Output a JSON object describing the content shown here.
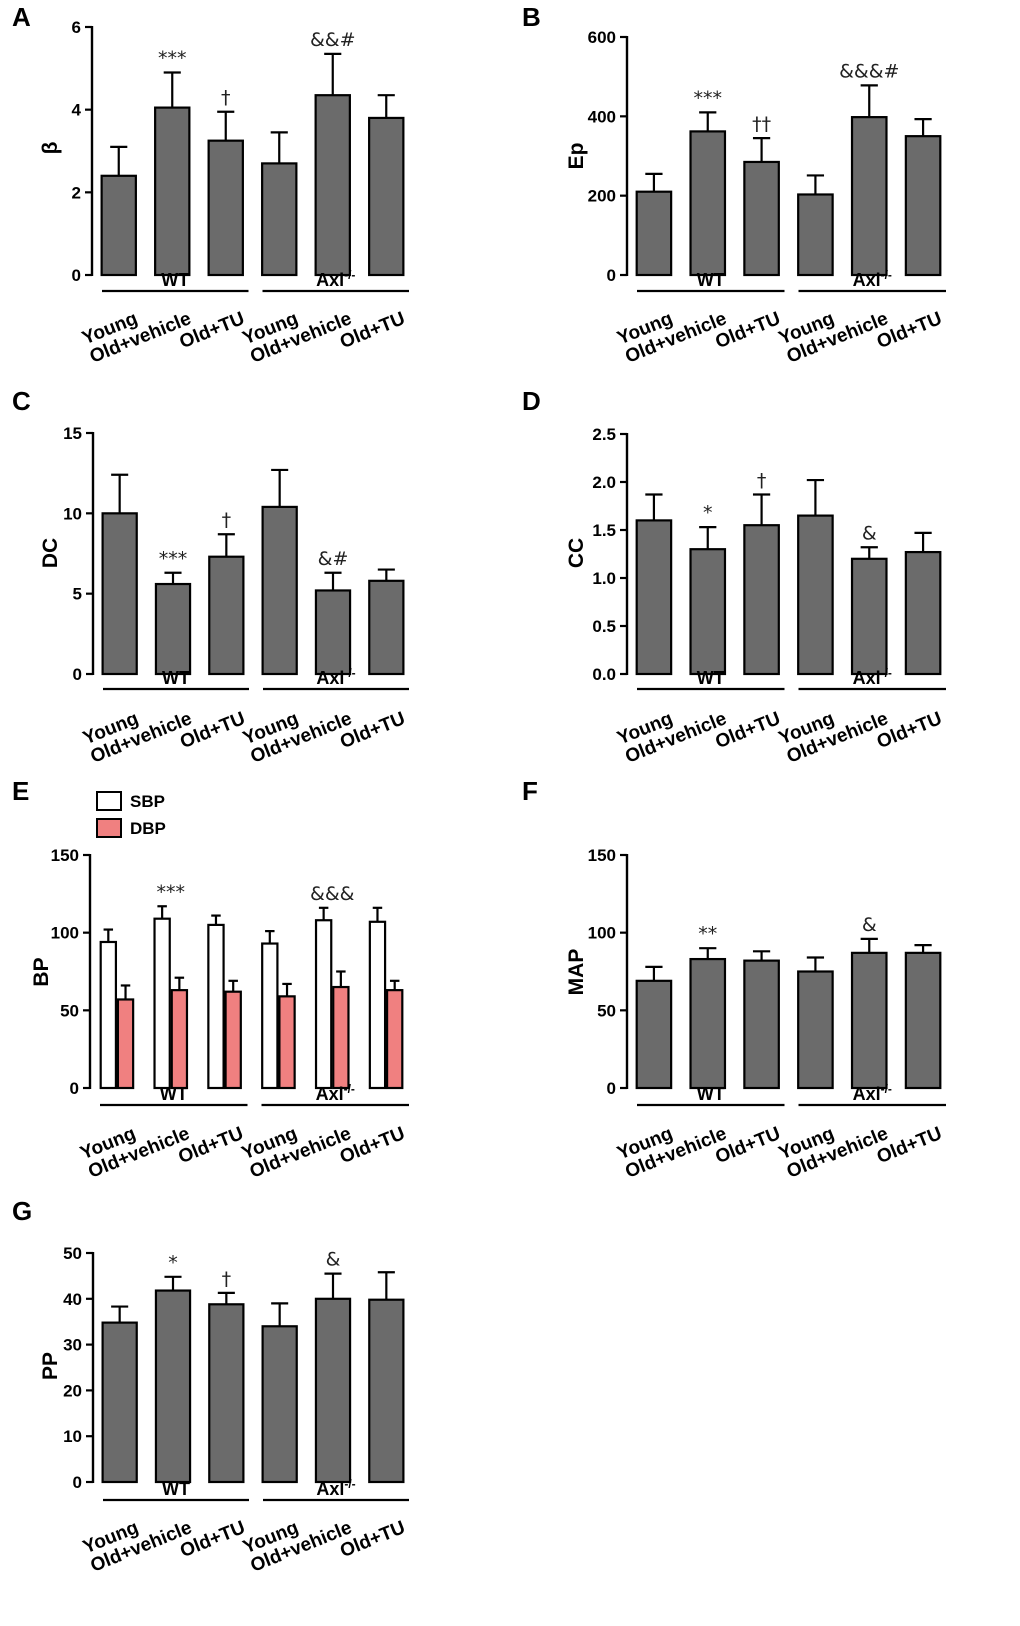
{
  "colors": {
    "bar": "#6b6b6b",
    "sbp": "#ffffff",
    "dbp": "#f08080",
    "ink": "#000000"
  },
  "chart_data": [
    {
      "type": "bar",
      "panel": "A",
      "ylabel": "β",
      "ylim": [
        0,
        6
      ],
      "yticks": [
        "0",
        "2",
        "4",
        "6"
      ],
      "categories": [
        "Young",
        "Old+vehicle",
        "Old+TU",
        "Young",
        "Old+vehicle",
        "Old+TU"
      ],
      "groups": [
        {
          "name": "WT",
          "sup": ""
        },
        {
          "name": "Axl",
          "sup": "-/-"
        }
      ],
      "series": [
        {
          "name": "",
          "values": [
            2.4,
            4.05,
            3.25,
            2.7,
            4.35,
            3.8
          ],
          "errors": [
            0.7,
            0.85,
            0.7,
            0.75,
            1.0,
            0.55
          ]
        }
      ],
      "annotations": [
        "",
        "***",
        "†",
        "",
        "&&#",
        ""
      ]
    },
    {
      "type": "bar",
      "panel": "B",
      "ylabel": "Ep",
      "ylim": [
        0,
        600
      ],
      "yticks": [
        "0",
        "200",
        "400",
        "600"
      ],
      "categories": [
        "Young",
        "Old+vehicle",
        "Old+TU",
        "Young",
        "Old+vehicle",
        "Old+TU"
      ],
      "groups": [
        {
          "name": "WT",
          "sup": ""
        },
        {
          "name": "Axl",
          "sup": "-/-"
        }
      ],
      "series": [
        {
          "name": "",
          "values": [
            210,
            362,
            285,
            203,
            398,
            350
          ],
          "errors": [
            45,
            48,
            60,
            48,
            80,
            43
          ]
        }
      ],
      "annotations": [
        "",
        "***",
        "††",
        "",
        "&&&#",
        ""
      ]
    },
    {
      "type": "bar",
      "panel": "C",
      "ylabel": "DC",
      "ylim": [
        0,
        15
      ],
      "yticks": [
        "0",
        "5",
        "10",
        "15"
      ],
      "categories": [
        "Young",
        "Old+vehicle",
        "Old+TU",
        "Young",
        "Old+vehicle",
        "Old+TU"
      ],
      "groups": [
        {
          "name": "WT",
          "sup": ""
        },
        {
          "name": "Axl",
          "sup": "-/-"
        }
      ],
      "series": [
        {
          "name": "",
          "values": [
            10.0,
            5.6,
            7.3,
            10.4,
            5.2,
            5.8
          ],
          "errors": [
            2.4,
            0.7,
            1.4,
            2.3,
            1.1,
            0.7
          ]
        }
      ],
      "annotations": [
        "",
        "***",
        "†",
        "",
        "&#",
        ""
      ]
    },
    {
      "type": "bar",
      "panel": "D",
      "ylabel": "CC",
      "ylim": [
        0,
        2.5
      ],
      "yticks": [
        "0.0",
        "0.5",
        "1.0",
        "1.5",
        "2.0",
        "2.5"
      ],
      "categories": [
        "Young",
        "Old+vehicle",
        "Old+TU",
        "Young",
        "Old+vehicle",
        "Old+TU"
      ],
      "groups": [
        {
          "name": "WT",
          "sup": ""
        },
        {
          "name": "Axl",
          "sup": "-/-"
        }
      ],
      "series": [
        {
          "name": "",
          "values": [
            1.6,
            1.3,
            1.55,
            1.65,
            1.2,
            1.27
          ],
          "errors": [
            0.27,
            0.23,
            0.32,
            0.37,
            0.12,
            0.2
          ]
        }
      ],
      "annotations": [
        "",
        "*",
        "†",
        "",
        "&",
        ""
      ]
    },
    {
      "type": "bar",
      "panel": "E",
      "ylabel": "BP",
      "ylim": [
        0,
        150
      ],
      "yticks": [
        "0",
        "50",
        "100",
        "150"
      ],
      "categories": [
        "Young",
        "Old+vehicle",
        "Old+TU",
        "Young",
        "Old+vehicle",
        "Old+TU"
      ],
      "groups": [
        {
          "name": "WT",
          "sup": ""
        },
        {
          "name": "Axl",
          "sup": "-/-"
        }
      ],
      "legend": [
        "SBP",
        "DBP"
      ],
      "series": [
        {
          "name": "SBP",
          "values": [
            94,
            109,
            105,
            93,
            108,
            107
          ],
          "errors": [
            8,
            8,
            6,
            8,
            8,
            9
          ]
        },
        {
          "name": "DBP",
          "values": [
            57,
            63,
            62,
            59,
            65,
            63
          ],
          "errors": [
            9,
            8,
            7,
            8,
            10,
            6
          ]
        }
      ],
      "annotations": [
        "",
        "***",
        "",
        "",
        "&&&",
        ""
      ]
    },
    {
      "type": "bar",
      "panel": "F",
      "ylabel": "MAP",
      "ylim": [
        0,
        150
      ],
      "yticks": [
        "0",
        "50",
        "100",
        "150"
      ],
      "categories": [
        "Young",
        "Old+vehicle",
        "Old+TU",
        "Young",
        "Old+vehicle",
        "Old+TU"
      ],
      "groups": [
        {
          "name": "WT",
          "sup": ""
        },
        {
          "name": "Axl",
          "sup": "-/-"
        }
      ],
      "series": [
        {
          "name": "",
          "values": [
            69,
            83,
            82,
            75,
            87,
            87
          ],
          "errors": [
            9,
            7,
            6,
            9,
            9,
            5
          ]
        }
      ],
      "annotations": [
        "",
        "**",
        "",
        "",
        "&",
        ""
      ]
    },
    {
      "type": "bar",
      "panel": "G",
      "ylabel": "PP",
      "ylim": [
        0,
        50
      ],
      "yticks": [
        "0",
        "10",
        "20",
        "30",
        "40",
        "50"
      ],
      "categories": [
        "Young",
        "Old+vehicle",
        "Old+TU",
        "Young",
        "Old+vehicle",
        "Old+TU"
      ],
      "groups": [
        {
          "name": "WT",
          "sup": ""
        },
        {
          "name": "Axl",
          "sup": "-/-"
        }
      ],
      "series": [
        {
          "name": "",
          "values": [
            34.8,
            41.8,
            38.8,
            34.0,
            40.0,
            39.8
          ],
          "errors": [
            3.5,
            3.0,
            2.5,
            5.0,
            5.5,
            6.0
          ]
        }
      ],
      "annotations": [
        "",
        "*",
        "†",
        "",
        "&",
        ""
      ]
    }
  ]
}
